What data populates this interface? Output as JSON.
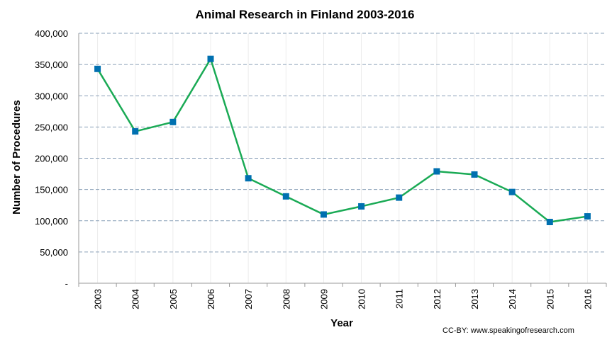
{
  "chart_data": {
    "type": "line",
    "title": "Animal Research in Finland 2003-2016",
    "xlabel": "Year",
    "ylabel": "Number of Procedures",
    "categories": [
      "2003",
      "2004",
      "2005",
      "2006",
      "2007",
      "2008",
      "2009",
      "2010",
      "2011",
      "2012",
      "2013",
      "2014",
      "2015",
      "2016"
    ],
    "series": [
      {
        "values": [
          343000,
          243000,
          258000,
          359000,
          168000,
          139000,
          110000,
          123000,
          137000,
          179000,
          174000,
          146000,
          98000,
          107000
        ]
      }
    ],
    "ylim": [
      0,
      400000
    ],
    "yticks": [
      0,
      50000,
      100000,
      150000,
      200000,
      250000,
      300000,
      350000,
      400000
    ],
    "ytick_labels": [
      "-",
      "50,000",
      "100,000",
      "150,000",
      "200,000",
      "250,000",
      "300,000",
      "350,000",
      "400,000"
    ],
    "grid": "horizontal dashed",
    "line_color": "#1aaa55",
    "marker_color": "#0070b0",
    "marker": "square",
    "credit": "CC-BY: www.speakingofresearch.com"
  }
}
